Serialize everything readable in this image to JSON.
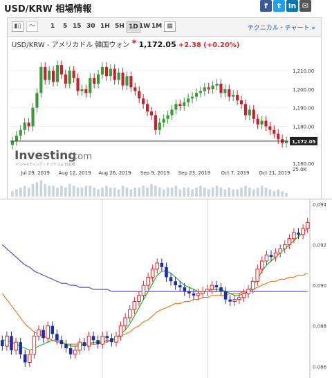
{
  "header": {
    "title": "USD/KRW 相場情報",
    "social": [
      {
        "icon": "facebook-icon",
        "glyph": "f",
        "color": "#3b5998"
      },
      {
        "icon": "twitter-icon",
        "glyph": "t",
        "color": "#1da1f2"
      },
      {
        "icon": "linkedin-icon",
        "glyph": "in",
        "color": "#0077b5"
      },
      {
        "icon": "email-icon",
        "glyph": "✉",
        "color": "#555555"
      }
    ]
  },
  "toolbar": {
    "timeframes": [
      "1",
      "5",
      "15",
      "30",
      "1H",
      "5H",
      "1D",
      "1W",
      "1M"
    ],
    "active_timeframe": "1D",
    "tech_link": "テクニカル・チャート »"
  },
  "quote": {
    "name": "USD/KRW - アメリカドル 韓国ウォン",
    "last": "1,172.05",
    "change": "+2.38",
    "change_pct": "(+0.20%)"
  },
  "logo": {
    "brand": "Investing",
    "suffix": ".com",
    "tagline": "インベスティング・ドットコム 日本版"
  },
  "chart_data": [
    {
      "type": "candlestick",
      "x_tick_labels": [
        "Jul 29, 2019",
        "Aug 12, 2019",
        "Aug 26, 2019",
        "Sep 9, 2019",
        "Sep 23, 2019",
        "Oct 7, 2019",
        "Oct 21, 2019"
      ],
      "y_tick_labels": [
        "1,210.00",
        "1,200.00",
        "1,190.00",
        "1,180.00",
        "1,170.00",
        "1,160.00"
      ],
      "ylim": [
        1160,
        1222
      ],
      "last_price_label": "1,172.05",
      "volume_axis_label": "25.0K",
      "up_color": "#3a9a3a",
      "down_color": "#c8202c",
      "closes": [
        1172,
        1175,
        1178,
        1182,
        1180,
        1190,
        1198,
        1212,
        1205,
        1210,
        1204,
        1213,
        1208,
        1203,
        1210,
        1206,
        1199,
        1200,
        1198,
        1206,
        1203,
        1208,
        1212,
        1207,
        1211,
        1205,
        1209,
        1202,
        1207,
        1201,
        1199,
        1195,
        1192,
        1188,
        1186,
        1178,
        1182,
        1184,
        1186,
        1189,
        1192,
        1191,
        1193,
        1195,
        1196,
        1198,
        1199,
        1201,
        1200,
        1202,
        1203,
        1198,
        1200,
        1196,
        1197,
        1194,
        1192,
        1186,
        1189,
        1184,
        1181,
        1183,
        1180,
        1178,
        1176,
        1173,
        1171,
        1172
      ],
      "volumes": [
        3,
        4,
        5,
        6,
        5,
        7,
        8,
        9,
        7,
        6,
        6,
        5,
        6,
        5,
        7,
        6,
        5,
        5,
        6,
        6,
        5,
        4,
        5,
        6,
        5,
        5,
        4,
        6,
        5,
        4,
        5,
        5,
        6,
        5,
        7,
        6,
        5,
        4,
        5,
        5,
        6,
        4,
        5,
        5,
        4,
        5,
        6,
        5,
        4,
        5,
        6,
        5,
        4,
        5,
        4,
        4,
        5,
        6,
        5,
        4,
        5,
        6,
        5,
        4,
        3,
        4,
        3,
        2
      ]
    },
    {
      "type": "candlestick",
      "y_tick_labels": [
        "0.094",
        "0.092",
        "0.090",
        "0.088",
        "0.086"
      ],
      "ylim": [
        0.0855,
        0.0941
      ],
      "up_color": "#e0242c",
      "down_color": "#1c2ea0",
      "series": [
        {
          "name": "",
          "color": "#29b329"
        },
        {
          "name": "",
          "color": "#f07a1e"
        },
        {
          "name": "",
          "color": "#6a47c8"
        }
      ],
      "closes": [
        0.087,
        0.0875,
        0.0868,
        0.0872,
        0.0866,
        0.0862,
        0.0866,
        0.0875,
        0.0878,
        0.0874,
        0.088,
        0.0876,
        0.0873,
        0.0871,
        0.0869,
        0.0866,
        0.0868,
        0.0872,
        0.087,
        0.0875,
        0.0873,
        0.0871,
        0.0875,
        0.0874,
        0.0872,
        0.0875,
        0.088,
        0.0884,
        0.0888,
        0.0892,
        0.0895,
        0.09,
        0.0904,
        0.0908,
        0.0911,
        0.0909,
        0.0904,
        0.0902,
        0.09,
        0.0899,
        0.0897,
        0.0896,
        0.0895,
        0.0896,
        0.0897,
        0.0898,
        0.09,
        0.0899,
        0.0897,
        0.0893,
        0.0892,
        0.0893,
        0.0894,
        0.0896,
        0.0898,
        0.0902,
        0.0908,
        0.0912,
        0.0915,
        0.0914,
        0.0916,
        0.0918,
        0.092,
        0.0923,
        0.0926,
        0.0925,
        0.0928,
        0.0931
      ],
      "ma_short": [
        0.0873,
        0.0873,
        0.0872,
        0.0871,
        0.087,
        0.0869,
        0.0868,
        0.0869,
        0.087,
        0.0871,
        0.0872,
        0.0873,
        0.0873,
        0.0872,
        0.0871,
        0.087,
        0.087,
        0.087,
        0.0871,
        0.0871,
        0.0872,
        0.0872,
        0.0872,
        0.0873,
        0.0873,
        0.0874,
        0.0876,
        0.0878,
        0.0881,
        0.0885,
        0.0889,
        0.0893,
        0.0897,
        0.0901,
        0.0905,
        0.0907,
        0.0907,
        0.0906,
        0.0904,
        0.0902,
        0.09,
        0.0899,
        0.0898,
        0.0897,
        0.0897,
        0.0897,
        0.0898,
        0.0898,
        0.0898,
        0.0897,
        0.0896,
        0.0895,
        0.0895,
        0.0896,
        0.0897,
        0.09,
        0.0903,
        0.0907,
        0.091,
        0.0912,
        0.0914,
        0.0916,
        0.0918,
        0.092,
        0.0922,
        0.0924,
        0.0926,
        0.0928
      ],
      "ma_mid": [
        0.0896,
        0.0893,
        0.089,
        0.0887,
        0.0884,
        0.0881,
        0.0879,
        0.0877,
        0.0876,
        0.0875,
        0.0874,
        0.0873,
        0.0872,
        0.0872,
        0.0871,
        0.0871,
        0.0871,
        0.0871,
        0.0871,
        0.0871,
        0.0871,
        0.0871,
        0.0872,
        0.0872,
        0.0873,
        0.0874,
        0.0875,
        0.0876,
        0.0877,
        0.0879,
        0.088,
        0.0882,
        0.0883,
        0.0885,
        0.0887,
        0.0888,
        0.0889,
        0.089,
        0.0891,
        0.0891,
        0.0892,
        0.0892,
        0.0893,
        0.0893,
        0.0894,
        0.0894,
        0.0895,
        0.0895,
        0.0895,
        0.0895,
        0.0896,
        0.0896,
        0.0896,
        0.0897,
        0.0897,
        0.0898,
        0.0899,
        0.09,
        0.0901,
        0.0902,
        0.0902,
        0.0903,
        0.0903,
        0.0904,
        0.0904,
        0.0905,
        0.0905,
        0.0906
      ],
      "ma_long": [
        0.092,
        0.0918,
        0.0916,
        0.0914,
        0.0912,
        0.091,
        0.0909,
        0.0907,
        0.0906,
        0.0905,
        0.0904,
        0.0903,
        0.0902,
        0.0901,
        0.0901,
        0.09,
        0.09,
        0.0899,
        0.0899,
        0.0899,
        0.0898,
        0.0898,
        0.0898,
        0.0898,
        0.0897,
        0.0897,
        0.0897,
        0.0897,
        0.0897,
        0.0897,
        0.0897,
        0.0897,
        0.0897,
        0.0897,
        0.0897,
        0.0897,
        0.0897,
        0.0897,
        0.0897,
        0.0897,
        0.0897,
        0.0897,
        0.0897,
        0.0897,
        0.0897,
        0.0897,
        0.0897,
        0.0897,
        0.0897,
        0.0897,
        0.0897,
        0.0897,
        0.0897,
        0.0897,
        0.0897,
        0.0897,
        0.0897,
        0.0897,
        0.0897,
        0.0897,
        0.0897,
        0.0897,
        0.0897,
        0.0897,
        0.0897,
        0.0897,
        0.0897,
        0.0897
      ]
    }
  ]
}
